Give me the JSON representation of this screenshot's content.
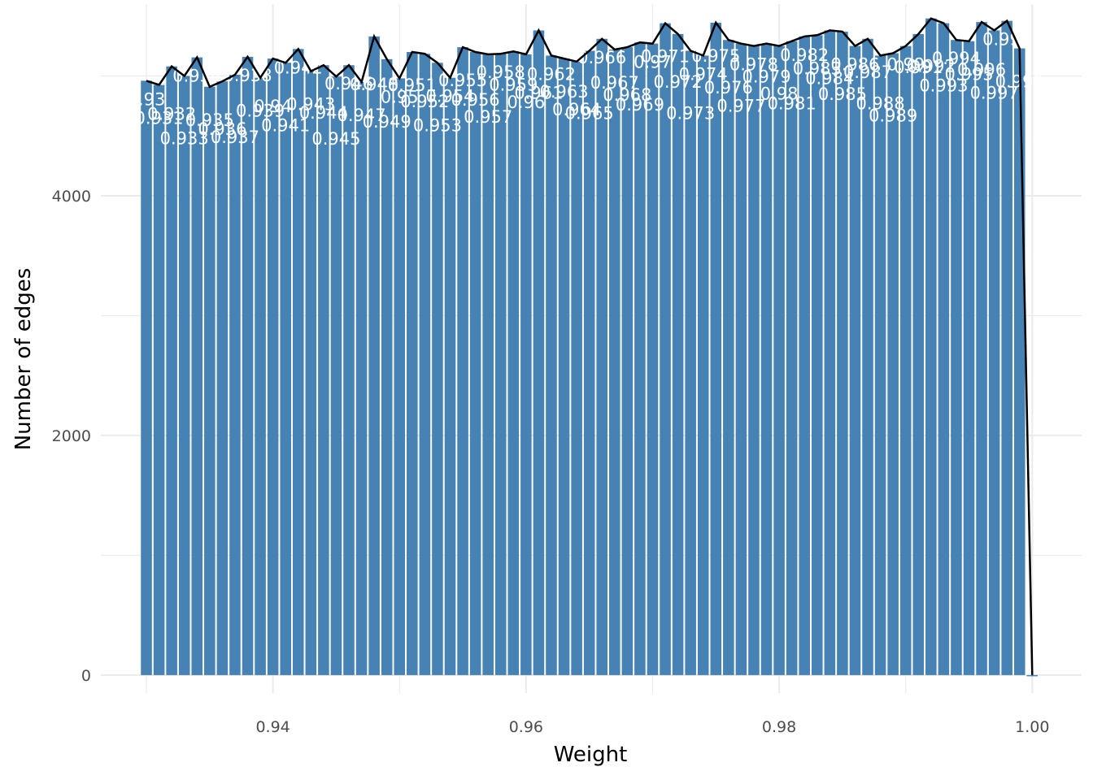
{
  "chart_data": {
    "type": "bar",
    "xlabel": "Weight",
    "ylabel": "Number of edges",
    "xlim": [
      0.9264,
      1.0039
    ],
    "ylim": [
      -150,
      5600
    ],
    "x_ticks": [
      {
        "value": 0.94,
        "label": "0.94"
      },
      {
        "value": 0.96,
        "label": "0.96"
      },
      {
        "value": 0.98,
        "label": "0.98"
      },
      {
        "value": 1.0,
        "label": "1.00"
      }
    ],
    "y_ticks": [
      {
        "value": 0,
        "label": "0"
      },
      {
        "value": 2000,
        "label": "2000"
      },
      {
        "value": 4000,
        "label": "4000"
      }
    ],
    "bin_width": 0.001,
    "x": [
      0.93,
      0.931,
      0.932,
      0.933,
      0.934,
      0.935,
      0.936,
      0.937,
      0.938,
      0.939,
      0.94,
      0.941,
      0.942,
      0.943,
      0.944,
      0.945,
      0.946,
      0.947,
      0.948,
      0.949,
      0.95,
      0.951,
      0.952,
      0.953,
      0.954,
      0.955,
      0.956,
      0.957,
      0.958,
      0.959,
      0.96,
      0.961,
      0.962,
      0.963,
      0.964,
      0.965,
      0.966,
      0.967,
      0.968,
      0.969,
      0.97,
      0.971,
      0.972,
      0.973,
      0.974,
      0.975,
      0.976,
      0.977,
      0.978,
      0.979,
      0.98,
      0.981,
      0.982,
      0.983,
      0.984,
      0.985,
      0.986,
      0.987,
      0.988,
      0.989,
      0.99,
      0.991,
      0.992,
      0.993,
      0.994,
      0.995,
      0.996,
      0.997,
      0.998,
      0.999,
      1.0
    ],
    "values": [
      4960,
      4925,
      5080,
      5000,
      5155,
      4910,
      4955,
      5010,
      5160,
      4985,
      5145,
      5110,
      5225,
      5040,
      5090,
      4995,
      5090,
      4950,
      5330,
      5140,
      4980,
      5200,
      5185,
      5110,
      4985,
      5240,
      5200,
      5180,
      5185,
      5205,
      5180,
      5380,
      5170,
      5145,
      5120,
      5210,
      5310,
      5220,
      5240,
      5280,
      5270,
      5440,
      5350,
      5210,
      5170,
      5445,
      5300,
      5270,
      5250,
      5270,
      5250,
      5290,
      5330,
      5340,
      5380,
      5370,
      5250,
      5310,
      5170,
      5190,
      5250,
      5350,
      5480,
      5440,
      5300,
      5290,
      5450,
      5380,
      5460,
      5230,
      0
    ],
    "bar_color": "#4682B4",
    "line_color": "#000000",
    "grid": true,
    "legend": "none"
  }
}
